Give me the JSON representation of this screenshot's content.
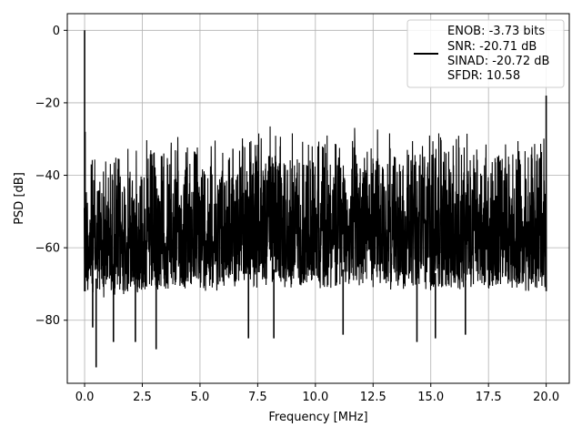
{
  "chart_data": {
    "type": "line",
    "title": "",
    "xlabel": "Frequency [MHz]",
    "ylabel": "PSD [dB]",
    "xlim": [
      -0.75,
      21.0
    ],
    "ylim": [
      -97.4,
      4.6
    ],
    "x_ticks": [
      0.0,
      2.5,
      5.0,
      7.5,
      10.0,
      12.5,
      15.0,
      17.5,
      20.0
    ],
    "x_tick_labels": [
      "0.0",
      "2.5",
      "5.0",
      "7.5",
      "10.0",
      "12.5",
      "15.0",
      "17.5",
      "20.0"
    ],
    "y_ticks": [
      0,
      -20,
      -40,
      -60,
      -80
    ],
    "y_tick_labels": [
      "0",
      "−20",
      "−40",
      "−60",
      "−80"
    ],
    "grid": true,
    "legend_position": "top-right",
    "series": [
      {
        "color": "#000000",
        "style": "dense noisy spectrum",
        "envelope_x": [
          0.0,
          1.0,
          2.5,
          5.0,
          7.5,
          10.0,
          12.5,
          15.0,
          17.5,
          20.0
        ],
        "envelope_upper": [
          -33,
          -31,
          -29,
          -27,
          -26,
          -26,
          -26,
          -27,
          -28,
          -28
        ],
        "envelope_lower": [
          -72,
          -73,
          -72,
          -71,
          -70,
          -70,
          -70,
          -71,
          -71,
          -72
        ],
        "peaks": [
          {
            "x": 0.0,
            "y": 0.0
          },
          {
            "x": 0.02,
            "y": -28
          },
          {
            "x": 20.0,
            "y": -18
          }
        ],
        "dips": [
          {
            "x": 0.35,
            "y": -82
          },
          {
            "x": 0.5,
            "y": -93
          },
          {
            "x": 1.25,
            "y": -86
          },
          {
            "x": 2.2,
            "y": -86
          },
          {
            "x": 3.1,
            "y": -88
          },
          {
            "x": 7.1,
            "y": -85
          },
          {
            "x": 8.2,
            "y": -85
          },
          {
            "x": 11.2,
            "y": -84
          },
          {
            "x": 14.4,
            "y": -86
          },
          {
            "x": 15.2,
            "y": -85
          },
          {
            "x": 16.5,
            "y": -84
          }
        ]
      }
    ],
    "legend": {
      "lines": [
        "ENOB: -3.73 bits",
        "SNR: -20.71 dB",
        "SINAD: -20.72 dB",
        "SFDR: 10.58"
      ]
    }
  }
}
